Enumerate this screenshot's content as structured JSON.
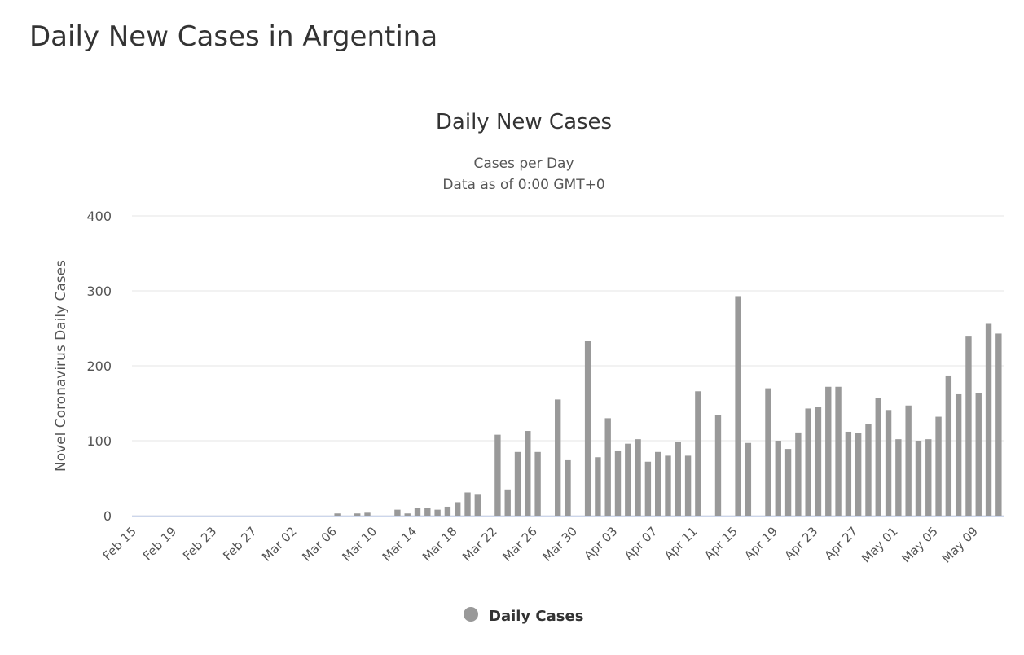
{
  "page_title": "Daily New Cases in Argentina",
  "chart_data": {
    "type": "bar",
    "title": "Daily New Cases",
    "subtitle": [
      "Cases per Day",
      "Data as of 0:00 GMT+0"
    ],
    "y_axis_label": "Novel Coronavirus Daily Cases",
    "categories": [
      "Feb 15",
      null,
      null,
      null,
      "Feb 19",
      null,
      null,
      null,
      "Feb 23",
      null,
      null,
      null,
      "Feb 27",
      null,
      null,
      null,
      "Mar 02",
      null,
      null,
      null,
      "Mar 06",
      null,
      null,
      null,
      "Mar 10",
      null,
      null,
      null,
      "Mar 14",
      null,
      null,
      null,
      "Mar 18",
      null,
      null,
      null,
      "Mar 22",
      null,
      null,
      null,
      "Mar 26",
      null,
      null,
      null,
      "Mar 30",
      null,
      null,
      null,
      "Apr 03",
      null,
      null,
      null,
      "Apr 07",
      null,
      null,
      null,
      "Apr 11",
      null,
      null,
      null,
      "Apr 15",
      null,
      null,
      null,
      "Apr 19",
      null,
      null,
      null,
      "Apr 23",
      null,
      null,
      null,
      "Apr 27",
      null,
      null,
      null,
      "May 01",
      null,
      null,
      null,
      "May 05",
      null,
      null,
      null,
      "May 09",
      null,
      null
    ],
    "series": [
      {
        "name": "Daily Cases",
        "color": "#999999",
        "values": [
          0,
          0,
          0,
          0,
          0,
          0,
          0,
          0,
          0,
          0,
          0,
          0,
          0,
          0,
          0,
          0,
          0,
          0,
          0,
          0,
          3,
          0,
          3,
          4,
          0,
          0,
          8,
          3,
          10,
          10,
          8,
          12,
          18,
          31,
          29,
          0,
          108,
          35,
          85,
          113,
          85,
          0,
          155,
          74,
          0,
          233,
          78,
          130,
          87,
          96,
          102,
          72,
          85,
          80,
          98,
          80,
          166,
          0,
          134,
          0,
          293,
          97,
          0,
          170,
          100,
          89,
          111,
          143,
          145,
          172,
          172,
          112,
          110,
          122,
          157,
          141,
          102,
          147,
          100,
          102,
          132,
          187,
          162,
          239,
          164,
          256,
          243
        ]
      }
    ],
    "ylim": [
      0,
      400
    ],
    "yticks": [
      0,
      100,
      200,
      300,
      400
    ],
    "grid": true
  }
}
